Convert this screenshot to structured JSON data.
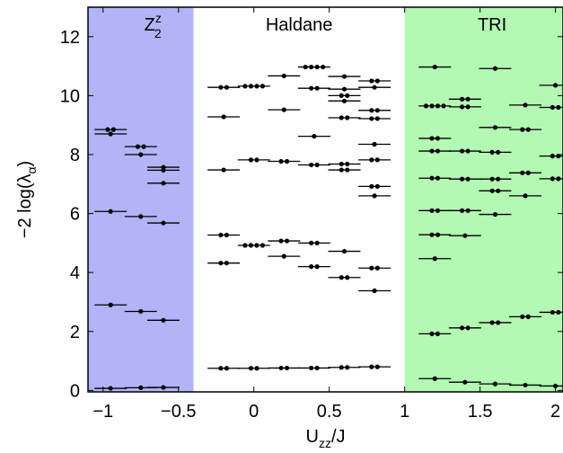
{
  "chart_data": {
    "type": "scatter",
    "title": "",
    "xlabel": "U",
    "xlabel_sub": "zz",
    "xlabel_suffix": "/J",
    "ylabel": "−2 log(λ",
    "ylabel_sub": "α",
    "ylabel_suffix": ")",
    "xlim": [
      -1.1,
      2.05
    ],
    "ylim": [
      -0.05,
      13
    ],
    "xticks": [
      -1,
      -0.5,
      0,
      0.5,
      1,
      1.5,
      2
    ],
    "xtick_labels": [
      "−1",
      "−0.5",
      "0",
      "0.5",
      "1",
      "1.5",
      "2"
    ],
    "yticks": [
      0,
      2,
      4,
      6,
      8,
      10,
      12
    ],
    "ytick_labels": [
      "0",
      "2",
      "4",
      "6",
      "8",
      "10",
      "12"
    ],
    "regions": [
      {
        "label_main": "Z",
        "label_sup": "z",
        "label_sub": "2",
        "x_range": [
          -1.1,
          -0.4
        ],
        "color": "#b3b3f8",
        "label_at": [
          -0.67,
          12.2
        ]
      },
      {
        "label_main": "Haldane",
        "label_sup": "",
        "label_sub": "",
        "x_range": [
          -0.4,
          1.0
        ],
        "color": "#ffffff",
        "label_at": [
          0.3,
          12.2
        ]
      },
      {
        "label_main": "TRI",
        "label_sup": "",
        "label_sub": "",
        "x_range": [
          1.0,
          2.05
        ],
        "color": "#b3f8b3",
        "label_at": [
          1.58,
          12.2
        ]
      }
    ],
    "marker_color": "#000000",
    "series": [
      {
        "x": -0.95,
        "levels": [
          {
            "y": 8.85,
            "n": 2
          },
          {
            "y": 8.7,
            "n": 1
          },
          {
            "y": 6.07,
            "n": 1
          },
          {
            "y": 2.9,
            "n": 1
          },
          {
            "y": 0.07,
            "n": 1
          }
        ]
      },
      {
        "x": -0.75,
        "levels": [
          {
            "y": 8.27,
            "n": 2
          },
          {
            "y": 8.0,
            "n": 1
          },
          {
            "y": 5.9,
            "n": 1
          },
          {
            "y": 2.68,
            "n": 1
          },
          {
            "y": 0.09,
            "n": 1
          }
        ]
      },
      {
        "x": -0.6,
        "levels": [
          {
            "y": 7.57,
            "n": 1
          },
          {
            "y": 7.47,
            "n": 1
          },
          {
            "y": 7.03,
            "n": 1
          },
          {
            "y": 5.68,
            "n": 1
          },
          {
            "y": 2.38,
            "n": 1
          },
          {
            "y": 0.1,
            "n": 1
          }
        ]
      },
      {
        "x": -0.2,
        "levels": [
          {
            "y": 10.28,
            "n": 2
          },
          {
            "y": 9.28,
            "n": 1
          },
          {
            "y": 7.48,
            "n": 1
          },
          {
            "y": 5.27,
            "n": 2
          },
          {
            "y": 4.32,
            "n": 2
          },
          {
            "y": 0.75,
            "n": 2
          }
        ]
      },
      {
        "x": 0.0,
        "levels": [
          {
            "y": 10.32,
            "n": 4
          },
          {
            "y": 7.82,
            "n": 2
          },
          {
            "y": 4.92,
            "n": 4
          },
          {
            "y": 0.75,
            "n": 2
          }
        ]
      },
      {
        "x": 0.2,
        "levels": [
          {
            "y": 10.67,
            "n": 1
          },
          {
            "y": 9.52,
            "n": 1
          },
          {
            "y": 7.77,
            "n": 2
          },
          {
            "y": 5.07,
            "n": 2
          },
          {
            "y": 4.55,
            "n": 1
          },
          {
            "y": 0.76,
            "n": 2
          }
        ]
      },
      {
        "x": 0.4,
        "levels": [
          {
            "y": 10.97,
            "n": 4
          },
          {
            "y": 10.25,
            "n": 2
          },
          {
            "y": 8.62,
            "n": 1
          },
          {
            "y": 7.65,
            "n": 2
          },
          {
            "y": 5.0,
            "n": 2
          },
          {
            "y": 4.2,
            "n": 2
          },
          {
            "y": 0.76,
            "n": 2
          }
        ]
      },
      {
        "x": 0.6,
        "levels": [
          {
            "y": 10.65,
            "n": 1
          },
          {
            "y": 10.22,
            "n": 1
          },
          {
            "y": 10.0,
            "n": 2
          },
          {
            "y": 9.82,
            "n": 1
          },
          {
            "y": 9.25,
            "n": 2
          },
          {
            "y": 7.68,
            "n": 2
          },
          {
            "y": 7.48,
            "n": 2
          },
          {
            "y": 4.72,
            "n": 1
          },
          {
            "y": 3.83,
            "n": 2
          },
          {
            "y": 0.78,
            "n": 2
          }
        ]
      },
      {
        "x": 0.8,
        "levels": [
          {
            "y": 10.5,
            "n": 2
          },
          {
            "y": 10.28,
            "n": 1
          },
          {
            "y": 9.5,
            "n": 2
          },
          {
            "y": 9.22,
            "n": 2
          },
          {
            "y": 8.35,
            "n": 1
          },
          {
            "y": 7.82,
            "n": 2
          },
          {
            "y": 6.92,
            "n": 2
          },
          {
            "y": 6.6,
            "n": 1
          },
          {
            "y": 4.15,
            "n": 2
          },
          {
            "y": 3.38,
            "n": 1
          },
          {
            "y": 0.8,
            "n": 2
          }
        ]
      },
      {
        "x": 1.2,
        "levels": [
          {
            "y": 10.97,
            "n": 1
          },
          {
            "y": 9.65,
            "n": 4
          },
          {
            "y": 8.55,
            "n": 2
          },
          {
            "y": 8.12,
            "n": 2
          },
          {
            "y": 7.2,
            "n": 2
          },
          {
            "y": 6.1,
            "n": 2
          },
          {
            "y": 5.28,
            "n": 2
          },
          {
            "y": 4.47,
            "n": 1
          },
          {
            "y": 1.92,
            "n": 2
          },
          {
            "y": 0.4,
            "n": 1
          }
        ]
      },
      {
        "x": 1.4,
        "levels": [
          {
            "y": 9.88,
            "n": 2
          },
          {
            "y": 9.62,
            "n": 2
          },
          {
            "y": 8.12,
            "n": 2
          },
          {
            "y": 7.17,
            "n": 2
          },
          {
            "y": 6.1,
            "n": 2
          },
          {
            "y": 5.25,
            "n": 1
          },
          {
            "y": 2.12,
            "n": 2
          },
          {
            "y": 0.28,
            "n": 1
          }
        ]
      },
      {
        "x": 1.6,
        "levels": [
          {
            "y": 10.92,
            "n": 1
          },
          {
            "y": 8.92,
            "n": 1
          },
          {
            "y": 8.08,
            "n": 2
          },
          {
            "y": 7.17,
            "n": 2
          },
          {
            "y": 6.77,
            "n": 2
          },
          {
            "y": 5.97,
            "n": 1
          },
          {
            "y": 2.3,
            "n": 2
          },
          {
            "y": 0.22,
            "n": 1
          }
        ]
      },
      {
        "x": 1.8,
        "levels": [
          {
            "y": 9.68,
            "n": 1
          },
          {
            "y": 8.85,
            "n": 2
          },
          {
            "y": 7.38,
            "n": 2
          },
          {
            "y": 6.6,
            "n": 1
          },
          {
            "y": 2.5,
            "n": 2
          },
          {
            "y": 0.18,
            "n": 1
          }
        ]
      },
      {
        "x": 2.0,
        "levels": [
          {
            "y": 10.35,
            "n": 1
          },
          {
            "y": 9.6,
            "n": 2
          },
          {
            "y": 7.95,
            "n": 2
          },
          {
            "y": 7.18,
            "n": 2
          },
          {
            "y": 2.65,
            "n": 2
          },
          {
            "y": 0.15,
            "n": 1
          }
        ]
      }
    ]
  }
}
